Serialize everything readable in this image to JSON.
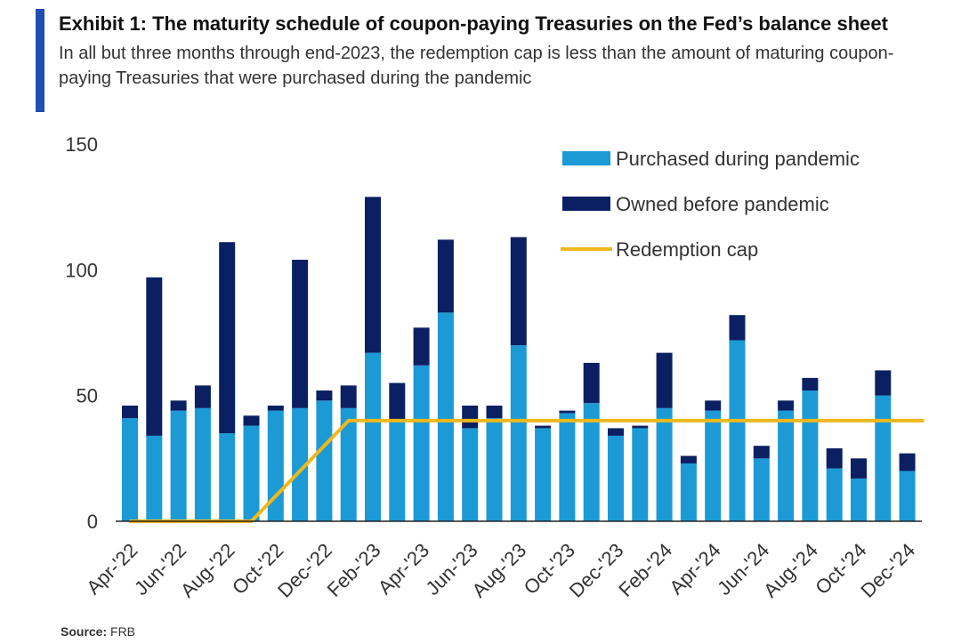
{
  "title": "Exhibit 1: The maturity  schedule of coupon-paying Treasuries on the Fed’s balance sheet",
  "subtitle": "In all but three months through end-2023, the redemption cap is less than the amount of maturing coupon-paying Treasuries that were purchased during the pandemic",
  "source_label": "Source:",
  "source_value": "FRB",
  "colors": {
    "purchased": "#1b9ad6",
    "owned": "#0b1f63",
    "cap": "#f0b81c",
    "accent": "#1f4fb3"
  },
  "chart_data": {
    "type": "bar",
    "stacked": true,
    "categories": [
      "Apr-22",
      "May-22",
      "Jun-22",
      "Jul-22",
      "Aug-22",
      "Sep-22",
      "Oct-22",
      "Nov-22",
      "Dec-22",
      "Jan-23",
      "Feb-23",
      "Mar-23",
      "Apr-23",
      "May-23",
      "Jun-23",
      "Jul-23",
      "Aug-23",
      "Sep-23",
      "Oct-23",
      "Nov-23",
      "Dec-23",
      "Jan-24",
      "Feb-24",
      "Mar-24",
      "Apr-24",
      "May-24",
      "Jun-24",
      "Jul-24",
      "Aug-24",
      "Sep-24",
      "Oct-24",
      "Nov-24",
      "Dec-24"
    ],
    "tick_labels": [
      "Apr-'22",
      "Jun-'22",
      "Aug-'22",
      "Oct-'22",
      "Dec-'22",
      "Feb-'23",
      "Apr-'23",
      "Jun-'23",
      "Aug-'23",
      "Oct-'23",
      "Dec-'23",
      "Feb-'24",
      "Apr-'24",
      "Jun-'24",
      "Aug-'24",
      "Oct-'24",
      "Dec-'24"
    ],
    "series": [
      {
        "name": "Purchased during pandemic",
        "kind": "bar",
        "values": [
          41,
          34,
          44,
          45,
          35,
          38,
          44,
          45,
          48,
          45,
          67,
          40,
          62,
          83,
          37,
          41,
          70,
          37,
          43,
          47,
          34,
          37,
          45,
          23,
          44,
          72,
          25,
          44,
          52,
          21,
          17,
          50,
          20
        ]
      },
      {
        "name": "Owned before pandemic",
        "kind": "bar",
        "values": [
          5,
          63,
          4,
          9,
          76,
          4,
          2,
          59,
          4,
          9,
          62,
          15,
          15,
          29,
          9,
          5,
          43,
          1,
          1,
          16,
          3,
          1,
          22,
          3,
          4,
          10,
          5,
          4,
          5,
          8,
          8,
          10,
          7
        ]
      },
      {
        "name": "Redemption cap",
        "kind": "line",
        "values": [
          0,
          0,
          0,
          0,
          0,
          0,
          10,
          20,
          30,
          40,
          40,
          40,
          40,
          40,
          40,
          40,
          40,
          40,
          40,
          40,
          40,
          40,
          40,
          40,
          40,
          40,
          40,
          40,
          40,
          40,
          40,
          40,
          40
        ]
      }
    ],
    "ylim": [
      0,
      150
    ],
    "yticks": [
      0,
      50,
      100,
      150
    ],
    "legend_position": "top-right",
    "title": "",
    "xlabel": "",
    "ylabel": ""
  }
}
